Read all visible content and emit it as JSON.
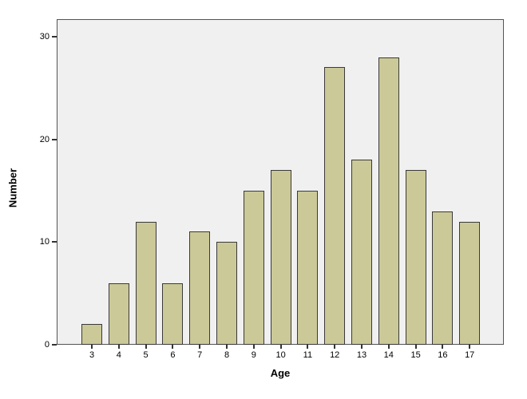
{
  "chart_data": {
    "type": "bar",
    "title": "",
    "xlabel": "Age",
    "ylabel": "Number",
    "categories": [
      "3",
      "4",
      "5",
      "6",
      "7",
      "8",
      "9",
      "10",
      "11",
      "12",
      "13",
      "14",
      "15",
      "16",
      "17"
    ],
    "values": [
      2,
      6,
      12,
      6,
      11,
      10,
      15,
      17,
      15,
      27,
      18,
      28,
      17,
      13,
      12
    ],
    "ylim": [
      0,
      31.7
    ],
    "yticks": [
      0,
      10,
      20,
      30
    ],
    "grid": "off",
    "legend": "none",
    "bar_fill_color": "#cbc998",
    "bar_border_color": "#3a3a3a",
    "plot_background_color": "#f0f0f0",
    "plot_frame_color": "#545454",
    "page_background_color": "#ffffff"
  }
}
